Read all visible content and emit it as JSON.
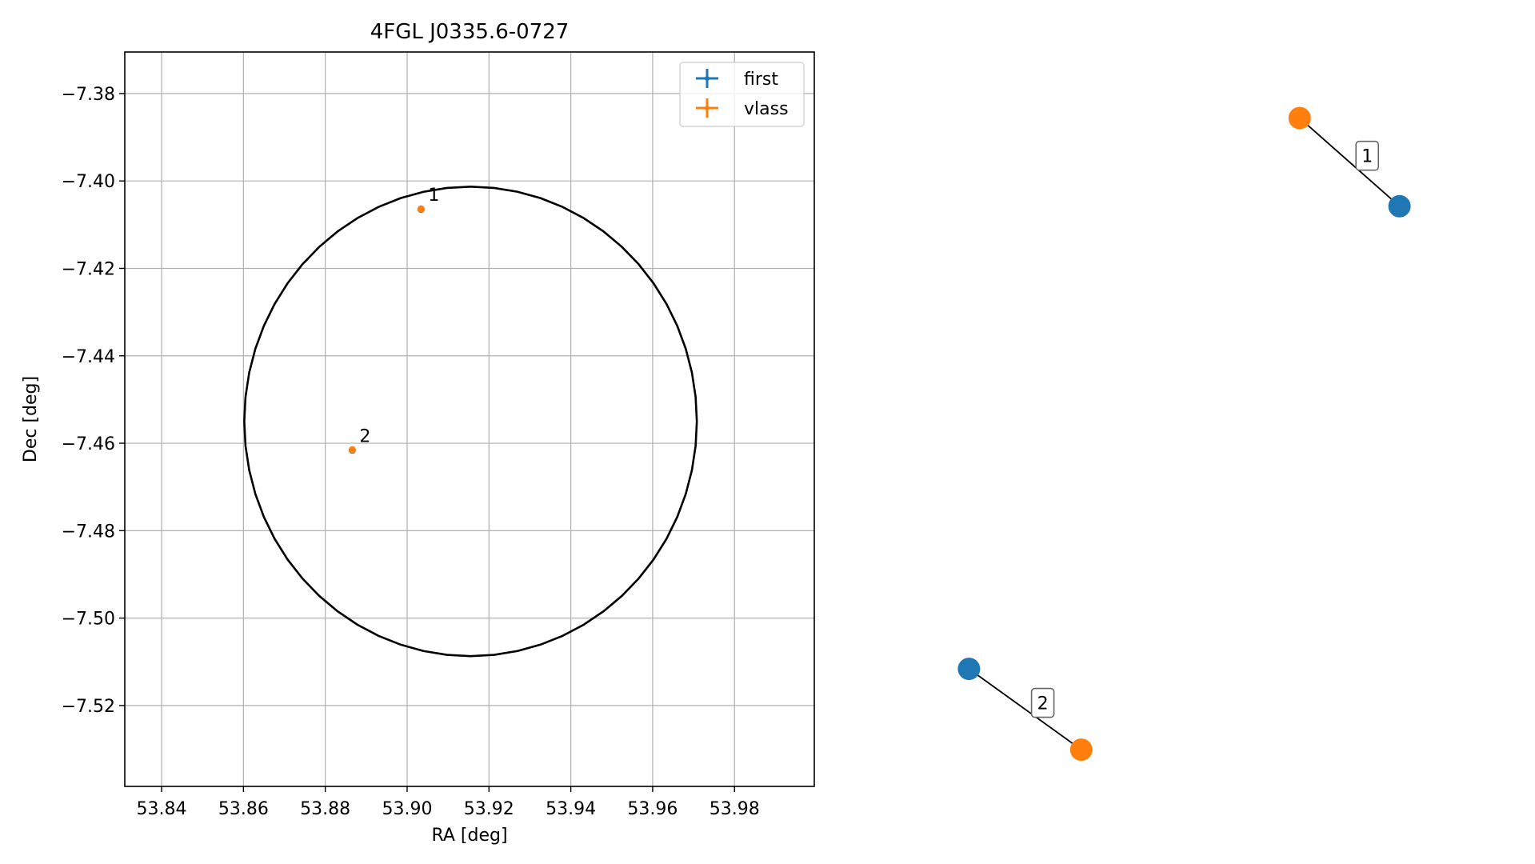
{
  "chart_data": [
    {
      "type": "scatter",
      "title": "4FGL J0335.6-0727",
      "xlabel": "RA [deg]",
      "ylabel": "Dec [deg]",
      "xlim": [
        53.831,
        53.9995
      ],
      "ylim": [
        -7.5385,
        -7.3705
      ],
      "xticks": [
        53.84,
        53.86,
        53.88,
        53.9,
        53.92,
        53.94,
        53.96,
        53.98
      ],
      "xtick_labels": [
        "53.84",
        "53.86",
        "53.88",
        "53.90",
        "53.92",
        "53.94",
        "53.96",
        "53.98"
      ],
      "yticks": [
        -7.38,
        -7.4,
        -7.42,
        -7.44,
        -7.46,
        -7.48,
        -7.5,
        -7.52
      ],
      "ytick_labels": [
        "−7.38",
        "−7.40",
        "−7.42",
        "−7.44",
        "−7.46",
        "−7.48",
        "−7.50",
        "−7.52"
      ],
      "grid": true,
      "legend_placement": "top-right",
      "series": [
        {
          "name": "first",
          "color": "#1f77b4",
          "points": [
            {
              "x": 53.9034,
              "y": -7.4065
            },
            {
              "x": 53.8866,
              "y": -7.4616
            }
          ]
        },
        {
          "name": "vlass",
          "color": "#ff7f0e",
          "points": [
            {
              "x": 53.9034,
              "y": -7.4064
            },
            {
              "x": 53.8866,
              "y": -7.4615
            }
          ]
        }
      ],
      "point_labels": [
        {
          "text": "1",
          "x": 53.9034,
          "y": -7.4064
        },
        {
          "text": "2",
          "x": 53.8866,
          "y": -7.4615
        }
      ],
      "circle": {
        "center_x": 53.9155,
        "center_y": -7.455,
        "radius_x": 0.0553,
        "radius_y": 0.0537,
        "color": "#000000"
      }
    },
    {
      "type": "scatter",
      "title": "",
      "note": "offset pairs (first vs vlass), no axes shown",
      "pairs": [
        {
          "label": "1",
          "first": {
            "x": 0.82,
            "y": 0.79
          },
          "vlass": {
            "x": 0.66,
            "y": 0.91
          }
        },
        {
          "label": "2",
          "first": {
            "x": 0.13,
            "y": 0.16
          },
          "vlass": {
            "x": 0.31,
            "y": 0.05
          }
        }
      ]
    }
  ],
  "colors": {
    "first": "#1f77b4",
    "vlass": "#ff7f0e",
    "grid": "#b0b0b0",
    "axes": "#000000"
  }
}
